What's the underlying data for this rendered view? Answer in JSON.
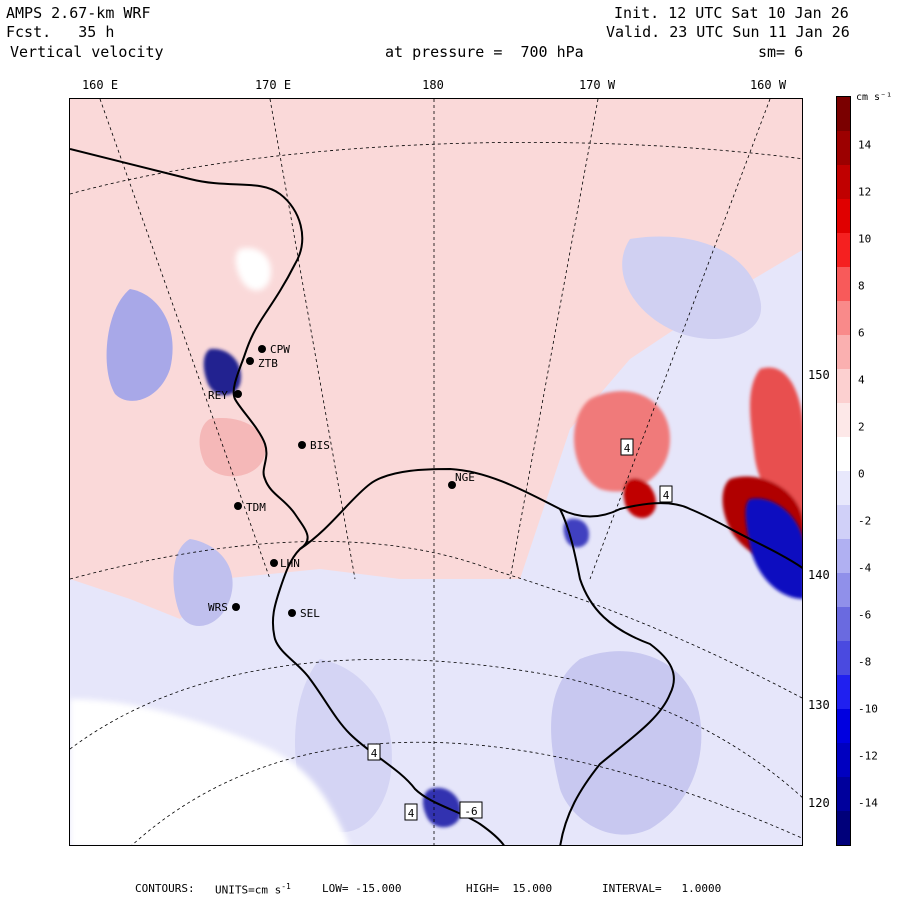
{
  "header": {
    "model": "AMPS 2.67-km WRF",
    "forecast": "Fcst.   35 h",
    "field": "Vertical velocity",
    "init": "Init. 12 UTC Sat 10 Jan 26",
    "valid": "Valid. 23 UTC Sun 11 Jan 26",
    "pressure_level": "at pressure =  700 hPa",
    "smoothing": "sm= 6"
  },
  "axes": {
    "longitude_labels": [
      "160 E",
      "170 E",
      "180",
      "170 W",
      "160 W"
    ],
    "latitude_labels": [
      "150 W",
      "140 W",
      "130 W",
      "120 W"
    ]
  },
  "stations": [
    {
      "id": "CPW",
      "label": "CPW"
    },
    {
      "id": "ZTB",
      "label": "ZTB"
    },
    {
      "id": "REY",
      "label": "REY"
    },
    {
      "id": "BIS",
      "label": "BIS"
    },
    {
      "id": "NGE",
      "label": "NGE"
    },
    {
      "id": "TDM",
      "label": "TDM"
    },
    {
      "id": "LHN",
      "label": "LHN"
    },
    {
      "id": "SEL",
      "label": "SEL"
    },
    {
      "id": "WRS",
      "label": "WRS"
    }
  ],
  "contour_markers": [
    "4",
    "4",
    "4",
    "4",
    "-6"
  ],
  "colorbar": {
    "unit": "cm s⁻¹",
    "ticks": [
      "14",
      "12",
      "10",
      "8",
      "6",
      "4",
      "2",
      "0",
      "-2",
      "-4",
      "-6",
      "-8",
      "-10",
      "-12",
      "-14"
    ],
    "colors": [
      "#7a0000",
      "#9c0000",
      "#c00000",
      "#e00000",
      "#f52020",
      "#f85a5a",
      "#f98a8a",
      "#fab0b0",
      "#fcd0d0",
      "#fde8e8",
      "#ffffff",
      "#e8e8fc",
      "#d0d0f8",
      "#b0b0f2",
      "#9090ea",
      "#6a6ae0",
      "#4a4ae0",
      "#2020f0",
      "#0000e0",
      "#0000c0",
      "#00009c",
      "#00007a"
    ]
  },
  "footer": {
    "contours": "CONTOURS:",
    "units_label": "UNITS=cm s",
    "units_exp": "-1",
    "low": "LOW= -15.000",
    "high": "HIGH=  15.000",
    "interval": "INTERVAL=   1.0000"
  }
}
